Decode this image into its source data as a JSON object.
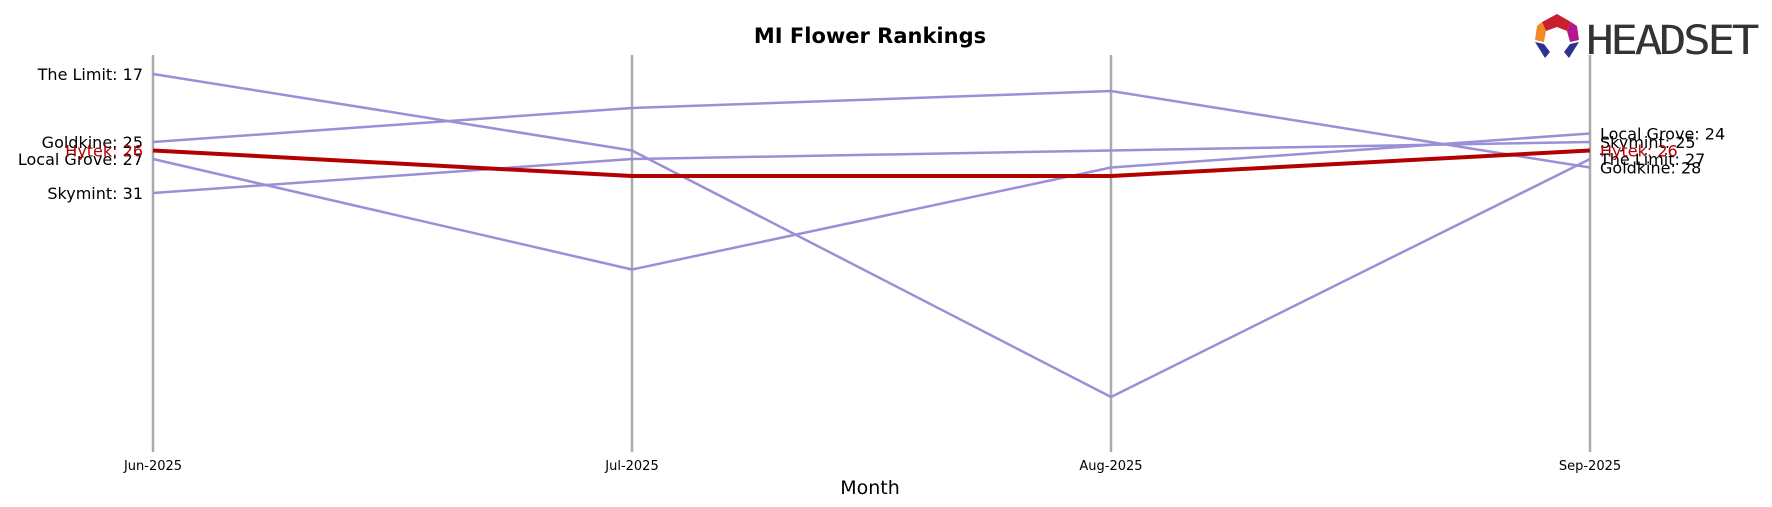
{
  "chart_data": {
    "type": "line",
    "title": "MI Flower Rankings",
    "xlabel": "Month",
    "ylabel": "",
    "x": [
      "Jun-2025",
      "Jul-2025",
      "Aug-2025",
      "Sep-2025"
    ],
    "y_inverted": true,
    "ylim": [
      15,
      57
    ],
    "grid": "vertical lines at each month",
    "legend": "none; series labeled at line ends",
    "series": [
      {
        "name": "The Limit",
        "values": [
          17,
          26,
          55,
          27
        ],
        "color": "#9b8fd6",
        "highlight": false
      },
      {
        "name": "Goldkine",
        "values": [
          25,
          21,
          19,
          28
        ],
        "color": "#9b8fd6",
        "highlight": false
      },
      {
        "name": "Local Grove",
        "values": [
          27,
          40,
          28,
          24
        ],
        "color": "#9b8fd6",
        "highlight": false
      },
      {
        "name": "Skymint",
        "values": [
          31,
          27,
          26,
          25
        ],
        "color": "#9b8fd6",
        "highlight": false
      },
      {
        "name": "Hytek",
        "values": [
          26,
          29,
          29,
          26
        ],
        "color": "#b30000",
        "highlight": true
      }
    ]
  },
  "colors": {
    "gridline": "#aaaaaa",
    "series_default": "#9b8fd6",
    "highlight": "#b30000"
  },
  "logo": {
    "text": "HEADSET"
  }
}
